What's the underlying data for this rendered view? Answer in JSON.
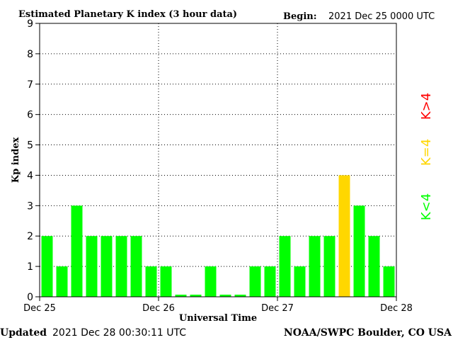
{
  "header": {
    "title": "Estimated Planetary K index (3 hour data)",
    "begin_label": "Begin:",
    "begin_value": "2021 Dec 25 0000 UTC"
  },
  "footer": {
    "updated_label": "Updated",
    "updated_value": "2021 Dec 28 00:30:11 UTC",
    "credit": "NOAA/SWPC Boulder, CO USA"
  },
  "legend": [
    {
      "label": "K>4",
      "color": "#ff0000"
    },
    {
      "label": "K=4",
      "color": "#ffd700"
    },
    {
      "label": "K<4",
      "color": "#00ff00"
    }
  ],
  "chart_data": {
    "type": "bar",
    "title": "Estimated Planetary K index (3 hour data)",
    "xlabel": "Universal Time",
    "ylabel": "Kp index",
    "ylim": [
      0,
      9
    ],
    "yticks": [
      0,
      1,
      2,
      3,
      4,
      5,
      6,
      7,
      8,
      9
    ],
    "xtick_labels": [
      "Dec 25",
      "Dec 26",
      "Dec 27",
      "Dec 28"
    ],
    "grid": "dotted at integer Kp and at day boundaries",
    "interval_hours": 3,
    "series": [
      {
        "values": [
          2,
          1,
          3,
          2,
          2,
          2,
          2,
          1,
          1,
          0,
          0,
          1,
          0,
          0,
          1,
          1,
          2,
          1,
          2,
          2,
          4,
          3,
          2,
          1
        ],
        "colors": [
          "#00ff00",
          "#00ff00",
          "#00ff00",
          "#00ff00",
          "#00ff00",
          "#00ff00",
          "#00ff00",
          "#00ff00",
          "#00ff00",
          "#00ff00",
          "#00ff00",
          "#00ff00",
          "#00ff00",
          "#00ff00",
          "#00ff00",
          "#00ff00",
          "#00ff00",
          "#00ff00",
          "#00ff00",
          "#00ff00",
          "#ffd700",
          "#00ff00",
          "#00ff00",
          "#00ff00"
        ]
      }
    ],
    "colors": {
      "below_4": "#00ff00",
      "equal_4": "#ffd700",
      "above_4": "#ff0000"
    }
  }
}
